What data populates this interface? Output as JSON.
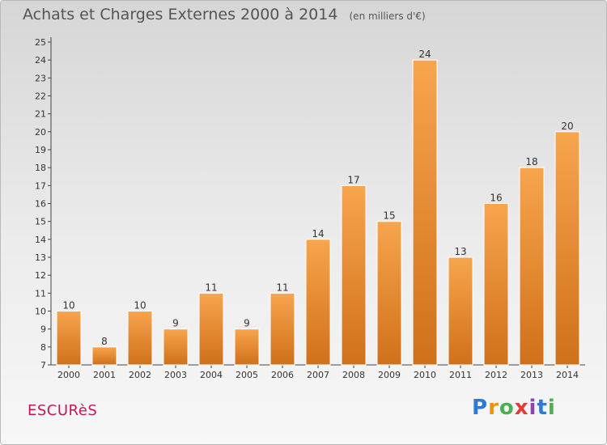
{
  "header": {
    "title": "Achats et Charges Externes 2000 à 2014",
    "subtitle": "(en milliers d'€)"
  },
  "commune": "ESCURèS",
  "logo": {
    "text": "Proxiti"
  },
  "colors": {
    "bar_light": "#f7a54e",
    "bar_dark": "#d0701a",
    "commune": "#c2185b"
  },
  "chart_data": {
    "type": "bar",
    "title": "Achats et Charges Externes 2000 à 2014",
    "subtitle": "(en milliers d'€)",
    "categories": [
      "2000",
      "2001",
      "2002",
      "2003",
      "2004",
      "2005",
      "2006",
      "2007",
      "2008",
      "2009",
      "2010",
      "2011",
      "2012",
      "2013",
      "2014"
    ],
    "values": [
      10,
      8,
      10,
      9,
      11,
      9,
      11,
      14,
      17,
      15,
      24,
      13,
      16,
      18,
      20
    ],
    "ylim": [
      7,
      25
    ],
    "yticks": [
      7,
      8,
      9,
      10,
      11,
      12,
      13,
      14,
      15,
      16,
      17,
      18,
      19,
      20,
      21,
      22,
      23,
      24,
      25
    ],
    "grid": false,
    "xlabel": "",
    "ylabel": ""
  }
}
